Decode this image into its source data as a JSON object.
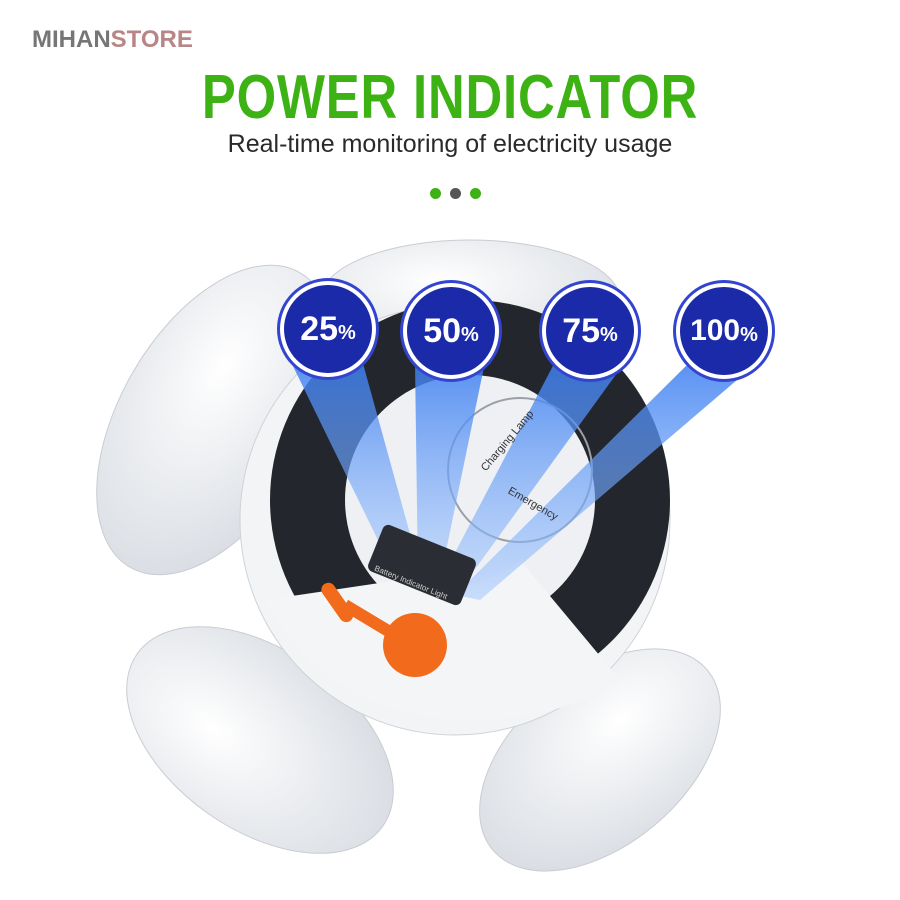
{
  "logo": {
    "part1": "MIHAN",
    "part2": "STORE",
    "color1": "#767676",
    "color2": "#b88686"
  },
  "header": {
    "title": "POWER INDICATOR",
    "subtitle": "Real-time monitoring of electricity usage",
    "title_color": "#3db214"
  },
  "pager_dots": [
    {
      "color": "#3db214"
    },
    {
      "color": "#555555"
    },
    {
      "color": "#3db214"
    }
  ],
  "levels": [
    {
      "value": "25",
      "unit": "%"
    },
    {
      "value": "50",
      "unit": "%"
    },
    {
      "value": "75",
      "unit": "%"
    },
    {
      "value": "100",
      "unit": "%"
    }
  ],
  "product": {
    "lamp_label_top": "Charging Lamp",
    "lamp_label_bottom": "Emergency",
    "indicator_label": "Battery Indicator Light"
  }
}
